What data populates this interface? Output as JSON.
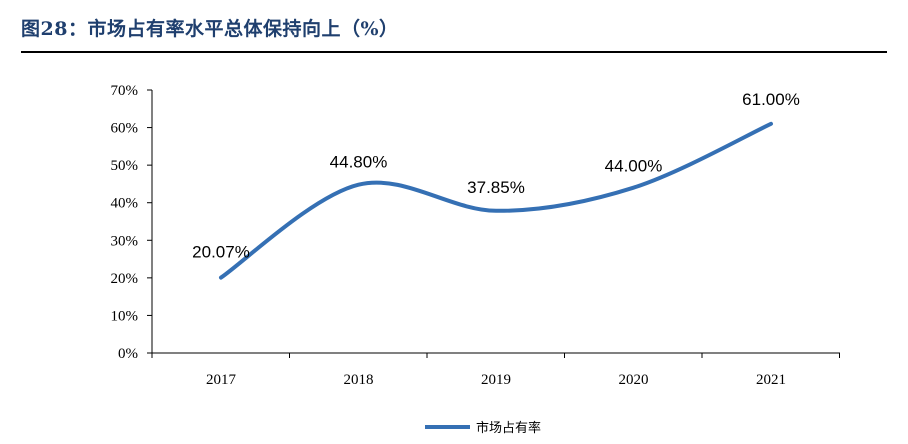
{
  "header": {
    "title": "图28：市场占有率水平总体保持向上（%）"
  },
  "chart_data": {
    "type": "line",
    "title": "",
    "xlabel": "",
    "ylabel": "",
    "categories": [
      "2017",
      "2018",
      "2019",
      "2020",
      "2021"
    ],
    "series": [
      {
        "name": "市场占有率",
        "values": [
          20.07,
          44.8,
          37.85,
          44.0,
          61.0
        ],
        "data_labels": [
          "20.07%",
          "44.80%",
          "37.85%",
          "44.00%",
          "61.00%"
        ],
        "color": "#3570b4",
        "smooth": true
      }
    ],
    "ylim": [
      0,
      70
    ],
    "y_ticks": [
      "0%",
      "10%",
      "20%",
      "30%",
      "40%",
      "50%",
      "60%",
      "70%"
    ],
    "grid": false,
    "legend": "bottom-center"
  }
}
